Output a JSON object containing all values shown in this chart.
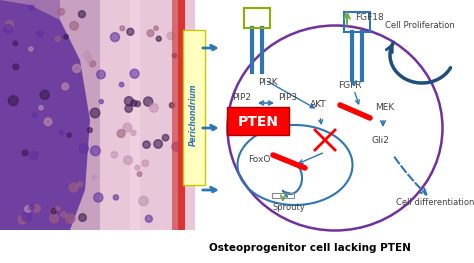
{
  "bg_color": "#ffffff",
  "title": "Osteoprogenitor cell lacking PTEN",
  "title_fontsize": 7.5,
  "title_fontweight": "bold",
  "blue": "#2e75b6",
  "purple": "#7030a0",
  "red": "#ff0000",
  "green": "#70ad47",
  "dark_blue": "#1f4e79",
  "label_color": "#404040",
  "pi3k": "PI3K",
  "pip2": "PIP2",
  "pip3": "PIP3",
  "pten": "PTEN",
  "akt": "AKT",
  "mek": "MEK",
  "gli2": "Gli2",
  "foxo": "FoxO",
  "sprouty": "Sprouty",
  "fgf18": "FGF18",
  "fgfr": "FGFR",
  "cell_prolif": "Cell Proliferation",
  "cell_diff": "Cell differentiation",
  "perichondrium": "Perichondrium"
}
